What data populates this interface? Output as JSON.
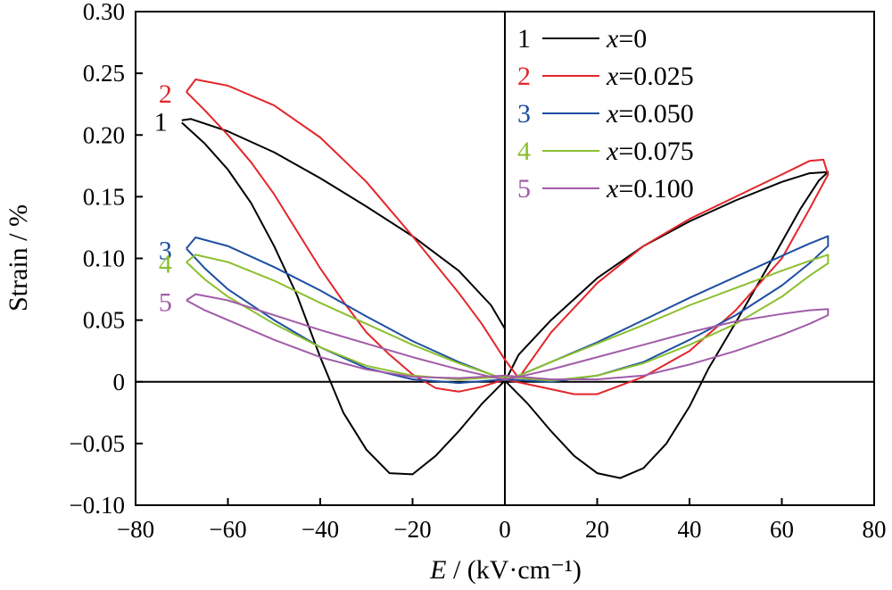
{
  "chart_data": {
    "type": "line",
    "title": "",
    "xlabel": {
      "symbol": "E",
      "unit": " / (kV·cm⁻¹)"
    },
    "ylabel": "Strain / %",
    "xlim": [
      -80,
      80
    ],
    "ylim": [
      -0.1,
      0.3
    ],
    "x_ticks": [
      "−80",
      "−60",
      "−40",
      "−20",
      "0",
      "20",
      "40",
      "60",
      "80"
    ],
    "x_tick_values": [
      -80,
      -60,
      -40,
      -20,
      0,
      20,
      40,
      60,
      80
    ],
    "y_ticks": [
      "0.30",
      "0.25",
      "0.20",
      "0.15",
      "0.10",
      "0.05",
      "0",
      "−0.05",
      "−0.10"
    ],
    "y_tick_values": [
      0.3,
      0.25,
      0.2,
      0.15,
      0.1,
      0.05,
      0,
      -0.05,
      -0.1
    ],
    "grid": false,
    "legend_position": "top-right",
    "series": [
      {
        "id": "1",
        "name": "x=0",
        "legend_prefix": "x",
        "legend_value": "=0",
        "color": "#000000",
        "curve_label": "1",
        "points": [
          [
            -70,
            0.212
          ],
          [
            -68,
            0.213
          ],
          [
            -60,
            0.203
          ],
          [
            -50,
            0.186
          ],
          [
            -40,
            0.165
          ],
          [
            -30,
            0.142
          ],
          [
            -20,
            0.118
          ],
          [
            -10,
            0.09
          ],
          [
            -3,
            0.062
          ],
          [
            0,
            0.043
          ],
          [
            0,
            0.0
          ],
          [
            3,
            0.022
          ],
          [
            10,
            0.05
          ],
          [
            20,
            0.084
          ],
          [
            30,
            0.11
          ],
          [
            40,
            0.13
          ],
          [
            50,
            0.147
          ],
          [
            60,
            0.162
          ],
          [
            66,
            0.169
          ],
          [
            70,
            0.17
          ],
          [
            68,
            0.163
          ],
          [
            64,
            0.14
          ],
          [
            58,
            0.1
          ],
          [
            50,
            0.048
          ],
          [
            44,
            0.01
          ],
          [
            40,
            -0.02
          ],
          [
            35,
            -0.05
          ],
          [
            30,
            -0.07
          ],
          [
            25,
            -0.078
          ],
          [
            20,
            -0.074
          ],
          [
            15,
            -0.06
          ],
          [
            10,
            -0.04
          ],
          [
            5,
            -0.018
          ],
          [
            0,
            0.001
          ],
          [
            -5,
            -0.018
          ],
          [
            -10,
            -0.04
          ],
          [
            -15,
            -0.06
          ],
          [
            -20,
            -0.075
          ],
          [
            -25,
            -0.074
          ],
          [
            -30,
            -0.055
          ],
          [
            -35,
            -0.025
          ],
          [
            -40,
            0.02
          ],
          [
            -45,
            0.07
          ],
          [
            -50,
            0.11
          ],
          [
            -55,
            0.145
          ],
          [
            -60,
            0.172
          ],
          [
            -65,
            0.193
          ],
          [
            -70,
            0.21
          ]
        ]
      },
      {
        "id": "2",
        "name": "x=0.025",
        "legend_prefix": "x",
        "legend_value": "=0.025",
        "color": "#e3262b",
        "curve_label": "2",
        "points": [
          [
            -69,
            0.235
          ],
          [
            -67,
            0.245
          ],
          [
            -60,
            0.24
          ],
          [
            -50,
            0.224
          ],
          [
            -40,
            0.198
          ],
          [
            -30,
            0.162
          ],
          [
            -20,
            0.118
          ],
          [
            -10,
            0.072
          ],
          [
            -5,
            0.047
          ],
          [
            0,
            0.018
          ],
          [
            3,
            0.003
          ],
          [
            10,
            0.04
          ],
          [
            20,
            0.08
          ],
          [
            30,
            0.11
          ],
          [
            40,
            0.132
          ],
          [
            50,
            0.15
          ],
          [
            60,
            0.168
          ],
          [
            66,
            0.179
          ],
          [
            69,
            0.18
          ],
          [
            70,
            0.168
          ],
          [
            66,
            0.14
          ],
          [
            60,
            0.1
          ],
          [
            50,
            0.058
          ],
          [
            40,
            0.025
          ],
          [
            30,
            0.004
          ],
          [
            20,
            -0.01
          ],
          [
            15,
            -0.01
          ],
          [
            10,
            -0.006
          ],
          [
            5,
            -0.002
          ],
          [
            0,
            0.002
          ],
          [
            -5,
            -0.004
          ],
          [
            -10,
            -0.008
          ],
          [
            -15,
            -0.005
          ],
          [
            -20,
            0.006
          ],
          [
            -25,
            0.022
          ],
          [
            -30,
            0.04
          ],
          [
            -35,
            0.065
          ],
          [
            -40,
            0.092
          ],
          [
            -45,
            0.122
          ],
          [
            -50,
            0.152
          ],
          [
            -55,
            0.178
          ],
          [
            -60,
            0.2
          ],
          [
            -65,
            0.22
          ],
          [
            -69,
            0.235
          ]
        ]
      },
      {
        "id": "3",
        "name": "x=0.050",
        "legend_prefix": "x",
        "legend_value": "=0.050",
        "color": "#1e4fa3",
        "curve_label": "3",
        "points": [
          [
            -69,
            0.108
          ],
          [
            -67,
            0.117
          ],
          [
            -60,
            0.11
          ],
          [
            -50,
            0.093
          ],
          [
            -40,
            0.074
          ],
          [
            -30,
            0.053
          ],
          [
            -20,
            0.033
          ],
          [
            -10,
            0.016
          ],
          [
            -3,
            0.006
          ],
          [
            0,
            0.001
          ],
          [
            3,
            0.005
          ],
          [
            10,
            0.016
          ],
          [
            20,
            0.032
          ],
          [
            30,
            0.05
          ],
          [
            40,
            0.068
          ],
          [
            50,
            0.085
          ],
          [
            60,
            0.102
          ],
          [
            66,
            0.112
          ],
          [
            70,
            0.118
          ],
          [
            70,
            0.11
          ],
          [
            66,
            0.096
          ],
          [
            60,
            0.078
          ],
          [
            50,
            0.054
          ],
          [
            40,
            0.034
          ],
          [
            30,
            0.016
          ],
          [
            20,
            0.005
          ],
          [
            10,
            0.0
          ],
          [
            0,
            0.002
          ],
          [
            -10,
            -0.001
          ],
          [
            -20,
            0.002
          ],
          [
            -30,
            0.011
          ],
          [
            -40,
            0.028
          ],
          [
            -50,
            0.05
          ],
          [
            -60,
            0.075
          ],
          [
            -65,
            0.092
          ],
          [
            -69,
            0.108
          ]
        ]
      },
      {
        "id": "4",
        "name": "x=0.075",
        "legend_prefix": "x",
        "legend_value": "=0.075",
        "color": "#8cbf2f",
        "curve_label": "4",
        "points": [
          [
            -69,
            0.097
          ],
          [
            -67,
            0.103
          ],
          [
            -60,
            0.097
          ],
          [
            -50,
            0.082
          ],
          [
            -40,
            0.064
          ],
          [
            -30,
            0.047
          ],
          [
            -20,
            0.03
          ],
          [
            -10,
            0.015
          ],
          [
            -3,
            0.006
          ],
          [
            0,
            0.002
          ],
          [
            3,
            0.005
          ],
          [
            10,
            0.016
          ],
          [
            20,
            0.031
          ],
          [
            30,
            0.046
          ],
          [
            40,
            0.062
          ],
          [
            50,
            0.076
          ],
          [
            60,
            0.09
          ],
          [
            66,
            0.098
          ],
          [
            70,
            0.103
          ],
          [
            70,
            0.096
          ],
          [
            66,
            0.086
          ],
          [
            60,
            0.069
          ],
          [
            50,
            0.047
          ],
          [
            40,
            0.03
          ],
          [
            30,
            0.015
          ],
          [
            20,
            0.005
          ],
          [
            10,
            0.001
          ],
          [
            0,
            0.004
          ],
          [
            -10,
            0.002
          ],
          [
            -20,
            0.005
          ],
          [
            -30,
            0.013
          ],
          [
            -40,
            0.028
          ],
          [
            -50,
            0.047
          ],
          [
            -60,
            0.069
          ],
          [
            -65,
            0.083
          ],
          [
            -69,
            0.097
          ]
        ]
      },
      {
        "id": "5",
        "name": "x=0.100",
        "legend_prefix": "x",
        "legend_value": "=0.100",
        "color": "#a25ca8",
        "curve_label": "5",
        "points": [
          [
            -69,
            0.066
          ],
          [
            -67,
            0.071
          ],
          [
            -60,
            0.066
          ],
          [
            -50,
            0.054
          ],
          [
            -40,
            0.042
          ],
          [
            -30,
            0.031
          ],
          [
            -20,
            0.02
          ],
          [
            -10,
            0.01
          ],
          [
            -3,
            0.004
          ],
          [
            0,
            0.002
          ],
          [
            3,
            0.004
          ],
          [
            10,
            0.01
          ],
          [
            20,
            0.02
          ],
          [
            30,
            0.03
          ],
          [
            40,
            0.04
          ],
          [
            50,
            0.049
          ],
          [
            60,
            0.055
          ],
          [
            66,
            0.058
          ],
          [
            70,
            0.059
          ],
          [
            70,
            0.054
          ],
          [
            66,
            0.047
          ],
          [
            60,
            0.038
          ],
          [
            50,
            0.025
          ],
          [
            40,
            0.014
          ],
          [
            30,
            0.005
          ],
          [
            20,
            0.002
          ],
          [
            10,
            0.002
          ],
          [
            0,
            0.005
          ],
          [
            -10,
            0.003
          ],
          [
            -20,
            0.004
          ],
          [
            -30,
            0.01
          ],
          [
            -40,
            0.02
          ],
          [
            -50,
            0.034
          ],
          [
            -60,
            0.05
          ],
          [
            -65,
            0.058
          ],
          [
            -69,
            0.066
          ]
        ]
      }
    ]
  }
}
